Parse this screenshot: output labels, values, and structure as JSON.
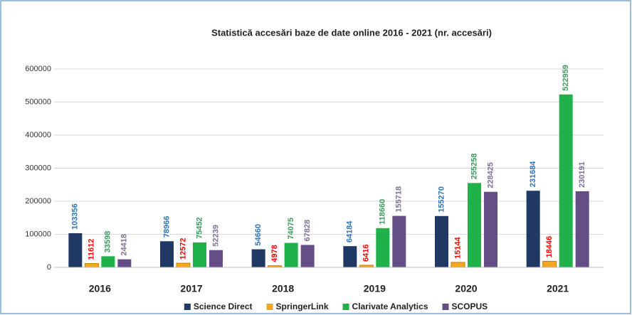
{
  "chart_data": {
    "type": "bar",
    "title": "Statistică accesări baze de date online 2016 - 2021 (nr. accesări)",
    "categories": [
      "2016",
      "2017",
      "2018",
      "2019",
      "2020",
      "2021"
    ],
    "series": [
      {
        "name": "Science Direct",
        "color": "#1f3864",
        "label_color": "#2e75b6",
        "values": [
          103356,
          78966,
          54660,
          64184,
          155270,
          231684
        ]
      },
      {
        "name": "SpringerLink",
        "color": "#f5a623",
        "label_color": "#ff0000",
        "values": [
          11612,
          12572,
          4978,
          6416,
          15144,
          18446
        ]
      },
      {
        "name": "Clarivate Analytics",
        "color": "#1fb24a",
        "label_color": "#3a9b5c",
        "values": [
          33598,
          75452,
          74075,
          118660,
          255258,
          522959
        ]
      },
      {
        "name": "SCOPUS",
        "color": "#654d86",
        "label_color": "#7f6f99",
        "values": [
          24418,
          52239,
          67828,
          155718,
          228425,
          230191
        ]
      }
    ],
    "ylim": [
      0,
      600000
    ],
    "yticks": [
      0,
      100000,
      200000,
      300000,
      400000,
      500000,
      600000
    ],
    "grid": true,
    "legend": "bottom"
  }
}
